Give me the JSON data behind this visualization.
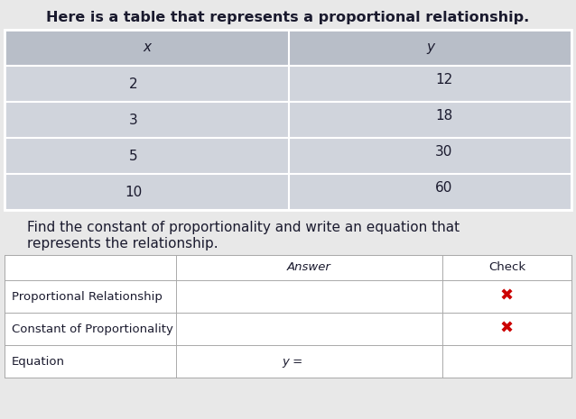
{
  "title": "Here is a table that represents a proportional relationship.",
  "table_header": [
    "x",
    "y"
  ],
  "table_rows": [
    [
      "2",
      "12"
    ],
    [
      "3",
      "18"
    ],
    [
      "5",
      "30"
    ],
    [
      "10",
      "60"
    ]
  ],
  "instruction_line1": "Find the constant of proportionality and write an equation that",
  "instruction_line2": "represents the relationship.",
  "bg_color_outer": "#e8e8e8",
  "bg_color_table_header": "#b8bec8",
  "bg_color_table_row": "#d0d4dc",
  "bg_color_white": "#ffffff",
  "text_color_dark": "#1a1a2e",
  "text_color_red": "#cc0000",
  "title_fontsize": 11.5,
  "body_fontsize": 11,
  "small_fontsize": 9.5
}
